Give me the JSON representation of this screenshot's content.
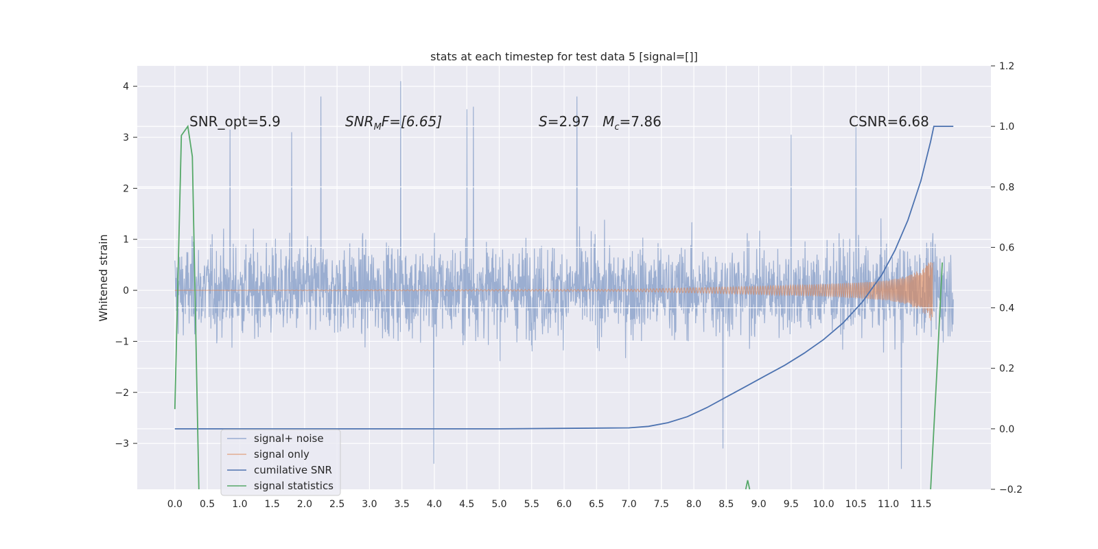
{
  "colors": {
    "background": "#eaeaf2",
    "grid": "#ffffff",
    "signal_noise": "#4c72b0",
    "signal_only": "#dd8452",
    "cumulative_snr": "#4c72b0",
    "signal_statistics": "#55a868"
  },
  "chart_data": {
    "type": "line",
    "title": "stats at each timestep for test data 5 [signal=[]]",
    "xlabel": "",
    "ylabel": "Whitened strain",
    "y2label": "",
    "xlim": [
      -0.58,
      12.58
    ],
    "ylim": [
      -3.9,
      4.4
    ],
    "y2lim": [
      -0.2,
      1.2
    ],
    "grid": true,
    "legend_position": "lower-left",
    "x_ticks": [
      "0.0",
      "0.5",
      "1.0",
      "1.5",
      "2.0",
      "2.5",
      "3.0",
      "3.5",
      "4.0",
      "4.5",
      "5.0",
      "5.5",
      "6.0",
      "6.5",
      "7.0",
      "7.5",
      "8.0",
      "8.5",
      "9.0",
      "9.5",
      "10.0",
      "10.5",
      "11.0",
      "11.5"
    ],
    "y_ticks": [
      "4",
      "3",
      "2",
      "1",
      "0",
      "−1",
      "−2",
      "−3"
    ],
    "y2_ticks": [
      "1.2",
      "1.0",
      "0.8",
      "0.6",
      "0.4",
      "0.2",
      "0.0",
      "−0.2"
    ],
    "annotations": [
      "SNR_opt=5.9",
      "SNR",
      "M",
      "F=[6.65]",
      "S",
      "=2.97   ",
      "M",
      "c",
      "=7.86",
      "CSNR=6.68"
    ],
    "series": [
      {
        "name": "signal+ noise",
        "axis": "left",
        "kind": "noise",
        "x_range": [
          0,
          12
        ],
        "typical_amplitude": [
          -1.4,
          1.4
        ],
        "peaks": [
          {
            "x": 2.25,
            "y": 3.8
          },
          {
            "x": 3.48,
            "y": 4.1
          },
          {
            "x": 4.5,
            "y": 3.55
          },
          {
            "x": 4.6,
            "y": 3.6
          },
          {
            "x": 6.2,
            "y": 3.8
          },
          {
            "x": 3.99,
            "y": -3.4
          },
          {
            "x": 11.2,
            "y": -3.5
          },
          {
            "x": 9.5,
            "y": 3.05
          },
          {
            "x": 10.5,
            "y": 3.2
          },
          {
            "x": 8.45,
            "y": -3.1
          },
          {
            "x": 1.8,
            "y": 3.1
          },
          {
            "x": 0.85,
            "y": 3.15
          }
        ]
      },
      {
        "name": "signal only",
        "axis": "left",
        "kind": "chirp",
        "x_range": [
          0,
          11.68
        ],
        "envelope": [
          [
            0,
            0.0
          ],
          [
            7.0,
            0.02
          ],
          [
            8.0,
            0.05
          ],
          [
            9.0,
            0.08
          ],
          [
            10.0,
            0.12
          ],
          [
            10.5,
            0.15
          ],
          [
            11.0,
            0.2
          ],
          [
            11.3,
            0.28
          ],
          [
            11.55,
            0.45
          ],
          [
            11.65,
            0.6
          ],
          [
            11.68,
            0.55
          ]
        ]
      },
      {
        "name": "cumilative SNR",
        "axis": "right",
        "x": [
          0,
          1,
          2,
          3,
          4,
          5,
          6,
          7.0,
          7.3,
          7.6,
          7.9,
          8.2,
          8.5,
          8.8,
          9.1,
          9.4,
          9.7,
          10.0,
          10.3,
          10.6,
          10.9,
          11.1,
          11.3,
          11.5,
          11.65,
          11.7,
          12.0
        ],
        "y": [
          0,
          0,
          0,
          0,
          0,
          0,
          0.0015,
          0.003,
          0.008,
          0.02,
          0.04,
          0.07,
          0.105,
          0.14,
          0.175,
          0.21,
          0.25,
          0.295,
          0.35,
          0.42,
          0.51,
          0.59,
          0.69,
          0.82,
          0.95,
          1.0,
          1.0
        ]
      },
      {
        "name": "signal statistics",
        "axis": "right",
        "segments": [
          {
            "x": [
              0.0,
              0.1,
              0.2,
              0.27,
              0.37
            ],
            "y": [
              0.065,
              0.97,
              1.0,
              0.9,
              -0.2
            ]
          },
          {
            "x": [
              8.8,
              8.83,
              8.86
            ],
            "y": [
              -0.2,
              -0.17,
              -0.2
            ]
          },
          {
            "x": [
              11.65,
              11.75,
              11.83
            ],
            "y": [
              -0.2,
              0.2,
              0.55
            ]
          }
        ]
      }
    ]
  }
}
